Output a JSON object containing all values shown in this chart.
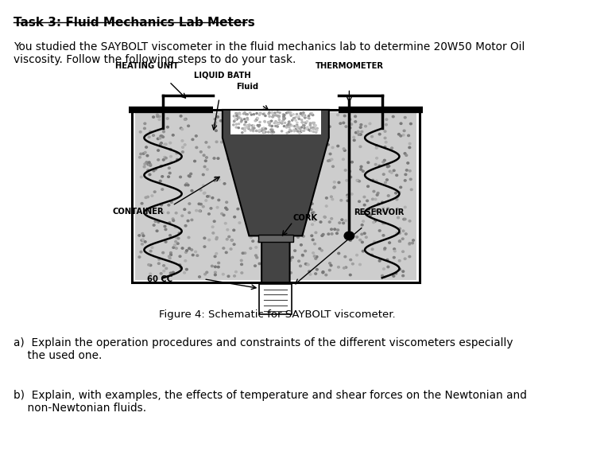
{
  "title": "Task 3: Fluid Mechanics Lab Meters",
  "intro_text": "You studied the SAYBOLT viscometer in the fluid mechanics lab to determine 20W50 Motor Oil\nviscosity. Follow the following steps to do your task.",
  "figure_caption": "Figure 4: Schematic for SAYBOLT viscometer.",
  "question_a": "a)  Explain the operation procedures and constraints of the different viscometers especially\n    the used one.",
  "question_b": "b)  Explain, with examples, the effects of temperature and shear forces on the Newtonian and\n    non-Newtonian fluids.",
  "bg_color": "#ffffff",
  "text_color": "#000000"
}
